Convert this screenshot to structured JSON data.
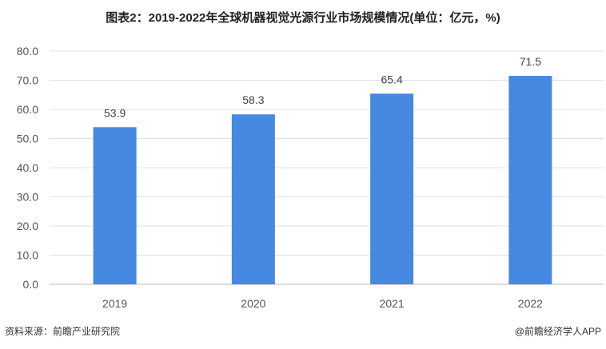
{
  "chart_data": {
    "type": "bar",
    "title": "图表2：2019-2022年全球机器视觉光源行业市场规模情况(单位：亿元，%)",
    "categories": [
      "2019",
      "2020",
      "2021",
      "2022"
    ],
    "values": [
      53.9,
      58.3,
      65.4,
      71.5
    ],
    "value_labels": [
      "53.9",
      "58.3",
      "65.4",
      "71.5"
    ],
    "xlabel": "",
    "ylabel": "",
    "ylim": [
      0,
      80
    ],
    "yticks": [
      "0.0",
      "10.0",
      "20.0",
      "30.0",
      "40.0",
      "50.0",
      "60.0",
      "70.0",
      "80.0"
    ],
    "grid": true,
    "legend": "none",
    "bar_color": "#4589e1"
  },
  "footer": {
    "source": "资料来源：前瞻产业研究院",
    "credit": "@前瞻经济学人APP"
  }
}
